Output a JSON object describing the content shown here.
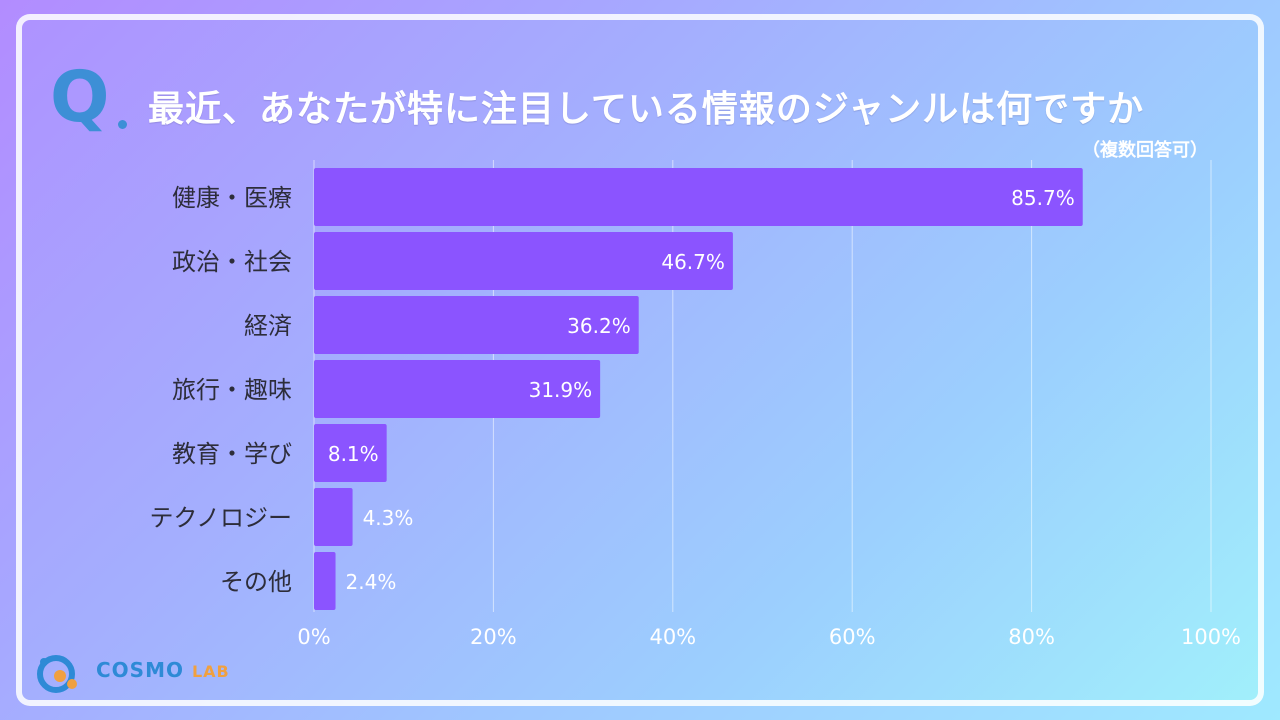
{
  "header": {
    "q_mark": "Q",
    "title": "最近、あなたが特に注目している情報のジャンルは何ですか",
    "subtitle": "（複数回答可）"
  },
  "colors": {
    "bar": "#8b54ff",
    "q_mark": "#3d8fd6"
  },
  "chart_data": {
    "type": "bar",
    "orientation": "horizontal",
    "categories": [
      "健康・医療",
      "政治・社会",
      "経済",
      "旅行・趣味",
      "教育・学び",
      "テクノロジー",
      "その他"
    ],
    "values": [
      85.7,
      46.7,
      36.2,
      31.9,
      8.1,
      4.3,
      2.4
    ],
    "value_labels": [
      "85.7%",
      "46.7%",
      "36.2%",
      "31.9%",
      "8.1%",
      "4.3%",
      "2.4%"
    ],
    "x_ticks": [
      "0%",
      "20%",
      "40%",
      "60%",
      "80%",
      "100%"
    ],
    "xlim": [
      0,
      100
    ],
    "grid": true,
    "title": "",
    "xlabel": "",
    "ylabel": ""
  },
  "logo": {
    "text_main": "COSMO",
    "text_sub": "LAB",
    "icon": "cosmo-lab-logo-icon"
  }
}
